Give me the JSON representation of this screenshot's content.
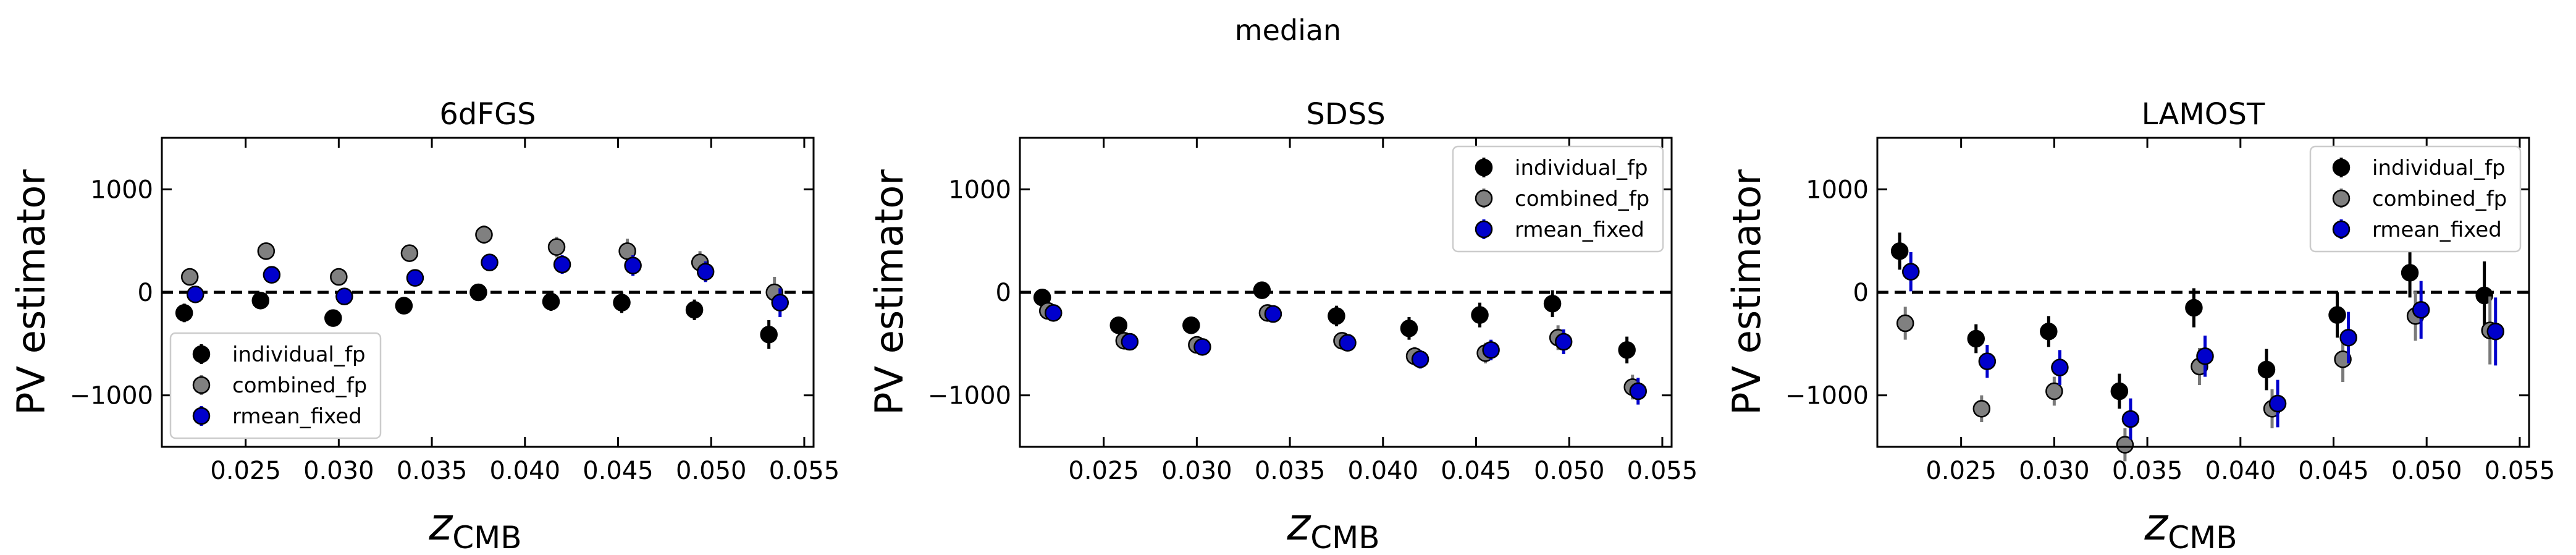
{
  "figure_title": "median",
  "chart_data": [
    {
      "type": "scatter",
      "title": "6dFGS",
      "xlabel_main": "z",
      "xlabel_sub": "CMB",
      "ylabel": "PV estimator",
      "xlim": [
        0.0205,
        0.0555
      ],
      "ylim": [
        -1500,
        1500
      ],
      "xticks": [
        0.025,
        0.03,
        0.035,
        0.04,
        0.045,
        0.05,
        0.055
      ],
      "xtick_labels": [
        "0.025",
        "0.030",
        "0.035",
        "0.040",
        "0.045",
        "0.050",
        "0.055"
      ],
      "yticks": [
        1000,
        0,
        -1000
      ],
      "ytick_labels": [
        "1000",
        "0",
        "−1000"
      ],
      "zero_line": true,
      "legend_position": "lower-left",
      "series": [
        {
          "name": "individual_fp",
          "color": "#000000",
          "x": [
            0.0217,
            0.0258,
            0.0297,
            0.0335,
            0.0375,
            0.0414,
            0.0452,
            0.0491,
            0.0531
          ],
          "y": [
            -200,
            -80,
            -250,
            -130,
            0,
            -90,
            -100,
            -170,
            -410
          ],
          "err": [
            90,
            70,
            80,
            70,
            70,
            90,
            100,
            100,
            140
          ]
        },
        {
          "name": "combined_fp",
          "color": "#808080",
          "x": [
            0.022,
            0.0261,
            0.03,
            0.0338,
            0.0378,
            0.0417,
            0.0455,
            0.0494,
            0.0534
          ],
          "y": [
            150,
            400,
            150,
            380,
            560,
            440,
            400,
            290,
            0
          ],
          "err": [
            60,
            60,
            70,
            70,
            90,
            100,
            120,
            110,
            150
          ]
        },
        {
          "name": "rmean_fixed",
          "color": "#0000cc",
          "x": [
            0.0223,
            0.0264,
            0.0303,
            0.0341,
            0.0381,
            0.042,
            0.0458,
            0.0497,
            0.0537
          ],
          "y": [
            -20,
            170,
            -40,
            140,
            290,
            270,
            260,
            200,
            -100
          ],
          "err": [
            60,
            60,
            60,
            70,
            80,
            90,
            100,
            100,
            140
          ]
        }
      ]
    },
    {
      "type": "scatter",
      "title": "SDSS",
      "xlabel_main": "z",
      "xlabel_sub": "CMB",
      "ylabel": "PV estimator",
      "xlim": [
        0.0205,
        0.0555
      ],
      "ylim": [
        -1500,
        1500
      ],
      "xticks": [
        0.025,
        0.03,
        0.035,
        0.04,
        0.045,
        0.05,
        0.055
      ],
      "xtick_labels": [
        "0.025",
        "0.030",
        "0.035",
        "0.040",
        "0.045",
        "0.050",
        "0.055"
      ],
      "yticks": [
        1000,
        0,
        -1000
      ],
      "ytick_labels": [
        "1000",
        "0",
        "−1000"
      ],
      "zero_line": true,
      "legend_position": "top-right",
      "series": [
        {
          "name": "individual_fp",
          "color": "#000000",
          "x": [
            0.0217,
            0.0258,
            0.0297,
            0.0335,
            0.0375,
            0.0414,
            0.0452,
            0.0491,
            0.0531
          ],
          "y": [
            -50,
            -320,
            -320,
            20,
            -230,
            -350,
            -220,
            -110,
            -560
          ],
          "err": [
            60,
            70,
            70,
            80,
            100,
            110,
            120,
            130,
            130
          ]
        },
        {
          "name": "combined_fp",
          "color": "#808080",
          "x": [
            0.022,
            0.0261,
            0.03,
            0.0338,
            0.0378,
            0.0417,
            0.0455,
            0.0494,
            0.0534
          ],
          "y": [
            -180,
            -470,
            -510,
            -200,
            -470,
            -620,
            -590,
            -440,
            -920
          ],
          "err": [
            50,
            60,
            60,
            70,
            80,
            90,
            100,
            120,
            120
          ]
        },
        {
          "name": "rmean_fixed",
          "color": "#0000cc",
          "x": [
            0.0223,
            0.0264,
            0.0303,
            0.0341,
            0.0381,
            0.042,
            0.0458,
            0.0497,
            0.0537
          ],
          "y": [
            -200,
            -480,
            -530,
            -210,
            -490,
            -650,
            -560,
            -480,
            -960
          ],
          "err": [
            50,
            60,
            60,
            70,
            80,
            90,
            100,
            120,
            130
          ]
        }
      ]
    },
    {
      "type": "scatter",
      "title": "LAMOST",
      "xlabel_main": "z",
      "xlabel_sub": "CMB",
      "ylabel": "PV estimator",
      "xlim": [
        0.0205,
        0.0555
      ],
      "ylim": [
        -1500,
        1500
      ],
      "xticks": [
        0.025,
        0.03,
        0.035,
        0.04,
        0.045,
        0.05,
        0.055
      ],
      "xtick_labels": [
        "0.025",
        "0.030",
        "0.035",
        "0.040",
        "0.045",
        "0.050",
        "0.055"
      ],
      "yticks": [
        1000,
        0,
        -1000
      ],
      "ytick_labels": [
        "1000",
        "0",
        "−1000"
      ],
      "zero_line": true,
      "legend_position": "top-right",
      "series": [
        {
          "name": "individual_fp",
          "color": "#000000",
          "x": [
            0.0217,
            0.0258,
            0.0297,
            0.0335,
            0.0375,
            0.0414,
            0.0452,
            0.0491,
            0.0531
          ],
          "y": [
            400,
            -450,
            -380,
            -960,
            -150,
            -750,
            -220,
            190,
            -30
          ],
          "err": [
            180,
            140,
            150,
            170,
            190,
            200,
            220,
            240,
            330
          ]
        },
        {
          "name": "combined_fp",
          "color": "#808080",
          "x": [
            0.022,
            0.0261,
            0.03,
            0.0338,
            0.0378,
            0.0417,
            0.0455,
            0.0494,
            0.0534
          ],
          "y": [
            -300,
            -1130,
            -960,
            -1480,
            -720,
            -1130,
            -650,
            -230,
            -370
          ],
          "err": [
            160,
            130,
            140,
            160,
            180,
            190,
            220,
            240,
            330
          ]
        },
        {
          "name": "rmean_fixed",
          "color": "#0000cc",
          "x": [
            0.0223,
            0.0264,
            0.0303,
            0.0341,
            0.0381,
            0.042,
            0.0458,
            0.0497,
            0.0537
          ],
          "y": [
            200,
            -670,
            -730,
            -1230,
            -620,
            -1080,
            -440,
            -170,
            -380
          ],
          "err": [
            190,
            160,
            170,
            200,
            200,
            230,
            250,
            280,
            330
          ]
        }
      ]
    }
  ]
}
